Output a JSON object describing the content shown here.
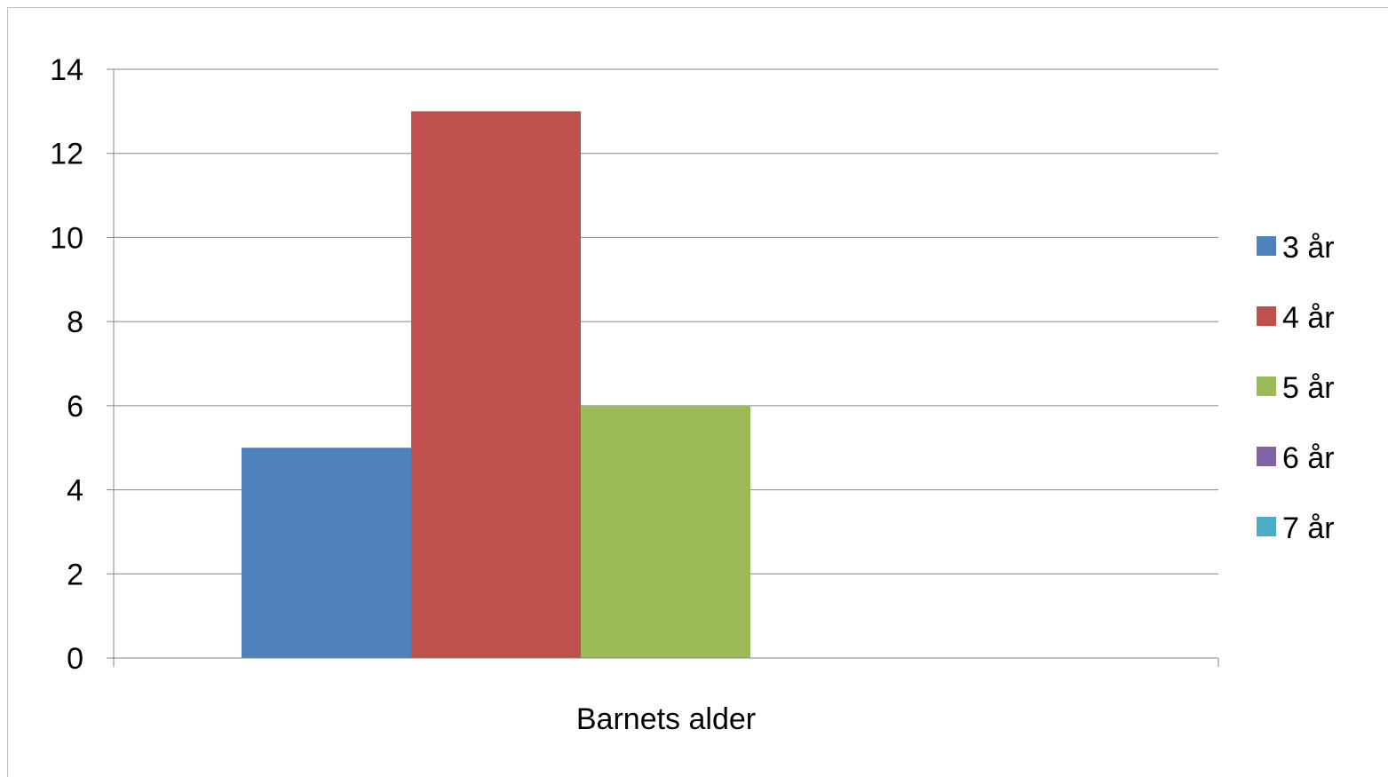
{
  "chart_data": {
    "type": "bar",
    "categories": [
      "Barnets alder"
    ],
    "series": [
      {
        "name": "3 år",
        "values": [
          5
        ],
        "color": "#4f81bd"
      },
      {
        "name": "4 år",
        "values": [
          13
        ],
        "color": "#c0504d"
      },
      {
        "name": "5 år",
        "values": [
          6
        ],
        "color": "#9bbb59"
      },
      {
        "name": "6 år",
        "values": [
          0
        ],
        "color": "#8064a2"
      },
      {
        "name": "7 år",
        "values": [
          0
        ],
        "color": "#4bacc6"
      }
    ],
    "title": "",
    "xlabel": "",
    "ylabel": "",
    "ylim": [
      0,
      14
    ],
    "yticks": [
      0,
      2,
      4,
      6,
      8,
      10,
      12,
      14
    ],
    "grid": true,
    "legend_position": "right"
  }
}
